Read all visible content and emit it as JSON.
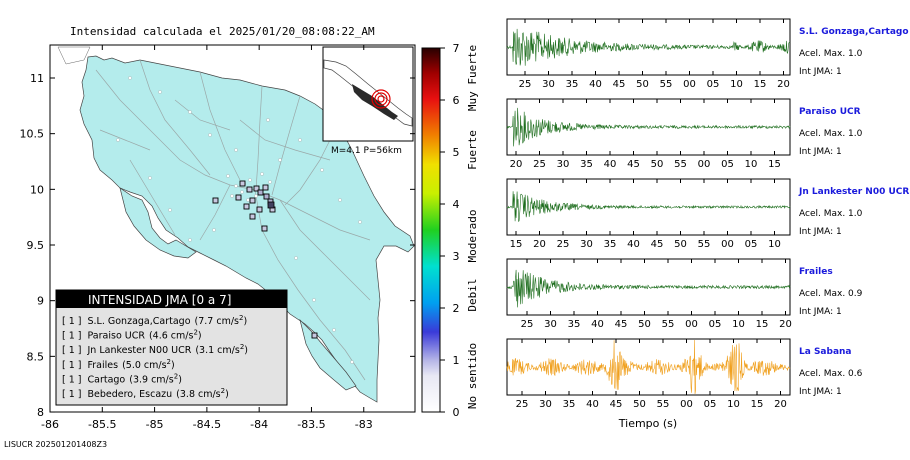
{
  "title": "Intensidad calculada el 2025/01/20_08:08:22_AM",
  "footer": "LISUCR 202501201408Z3",
  "event": {
    "label": "M=4.1 P=56km"
  },
  "map": {
    "lon_ticks": [
      "-86",
      "-85.5",
      "-85",
      "-84.5",
      "-84",
      "-83.5",
      "-83"
    ],
    "lat_ticks": [
      "11",
      "10.5",
      "10",
      "9.5",
      "9",
      "8.5",
      "8"
    ],
    "land_color": "#b4ecec",
    "sea_color": "#ffffff"
  },
  "colorbar": {
    "ticks": [
      "7",
      "6",
      "5",
      "4",
      "3",
      "2",
      "1",
      "0"
    ],
    "labels": [
      "Muy Fuerte",
      "Fuerte",
      "Moderado",
      "Debil",
      "No sentido"
    ]
  },
  "legend": {
    "header": "INTENSIDAD JMA [0 a 7]",
    "rows": [
      {
        "bracket": "[ 1 ]",
        "name": "S.L. Gonzaga,Cartago",
        "value": "(7.7 cm/s",
        "sup": "2",
        "close": ")"
      },
      {
        "bracket": "[ 1 ]",
        "name": "Paraiso UCR",
        "value": "(4.6 cm/s",
        "sup": "2",
        "close": ")"
      },
      {
        "bracket": "[ 1 ]",
        "name": "Jn Lankester N00 UCR",
        "value": "(3.1 cm/s",
        "sup": "2",
        "close": ")"
      },
      {
        "bracket": "[ 1 ]",
        "name": "Frailes",
        "value": "(5.0 cm/s",
        "sup": "2",
        "close": ")"
      },
      {
        "bracket": "[ 1 ]",
        "name": "Cartago",
        "value": "(3.9 cm/s",
        "sup": "2",
        "close": ")"
      },
      {
        "bracket": "[ 1 ]",
        "name": "Bebedero, Escazu",
        "value": "(3.8 cm/s",
        "sup": "2",
        "close": ")"
      }
    ]
  },
  "waveforms": {
    "xlabel": "Tiempo (s)",
    "panels": [
      {
        "station": "S.L. Gonzaga,Cartago",
        "acel": "Acel. Max. 1.0",
        "int": "Int JMA: 1",
        "color": "#1e6e1e",
        "ticks": [
          "25",
          "30",
          "35",
          "40",
          "45",
          "50",
          "55",
          "00",
          "05",
          "10",
          "15",
          "20"
        ]
      },
      {
        "station": "Paraiso UCR",
        "acel": "Acel. Max. 1.0",
        "int": "Int JMA: 1",
        "color": "#1e6e1e",
        "ticks": [
          "20",
          "25",
          "30",
          "35",
          "40",
          "45",
          "50",
          "55",
          "00",
          "05",
          "10",
          "15"
        ]
      },
      {
        "station": "Jn Lankester N00 UCR",
        "acel": "Acel. Max. 1.0",
        "int": "Int JMA: 1",
        "color": "#1e6e1e",
        "ticks": [
          "15",
          "20",
          "25",
          "30",
          "35",
          "40",
          "45",
          "50",
          "55",
          "00",
          "05",
          "10"
        ]
      },
      {
        "station": "Frailes",
        "acel": "Acel. Max. 0.9",
        "int": "Int JMA: 1",
        "color": "#1e6e1e",
        "ticks": [
          "25",
          "30",
          "35",
          "40",
          "45",
          "50",
          "55",
          "00",
          "05",
          "10",
          "15",
          "20"
        ]
      },
      {
        "station": "La Sabana",
        "acel": "Acel. Max. 0.6",
        "int": "Int JMA: 1",
        "color": "#f0a01e",
        "ticks": [
          "25",
          "30",
          "35",
          "40",
          "45",
          "50",
          "55",
          "00",
          "05",
          "10",
          "15",
          "20"
        ]
      }
    ]
  }
}
